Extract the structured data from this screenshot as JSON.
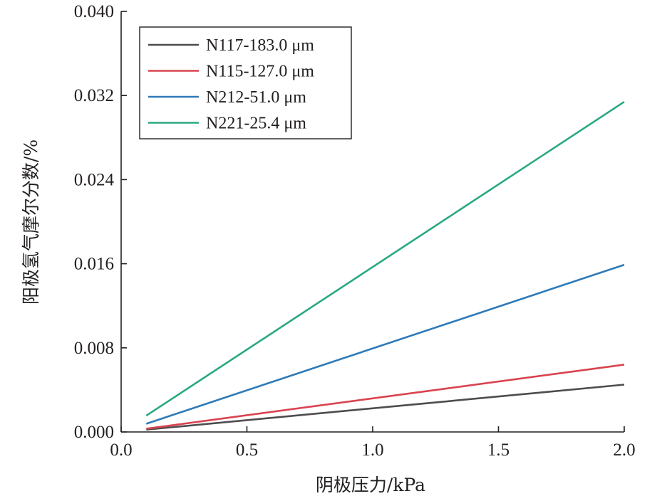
{
  "chart_data": {
    "type": "line",
    "xlabel": "阴极压力/kPa",
    "ylabel": "阳极氢气摩尔分数/%",
    "xlim": [
      0.0,
      2.0
    ],
    "ylim": [
      0.0,
      0.04
    ],
    "xticks": [
      "0.0",
      "0.5",
      "1.0",
      "1.5",
      "2.0"
    ],
    "yticks": [
      "0.000",
      "0.008",
      "0.016",
      "0.024",
      "0.032",
      "0.040"
    ],
    "grid": false,
    "legend_position": "top-left",
    "series": [
      {
        "name": "N117-183.0 μm",
        "color": "#4d4d4f",
        "x": [
          0.1,
          2.0
        ],
        "y": [
          0.00022,
          0.0045
        ]
      },
      {
        "name": "N115-127.0 μm",
        "color": "#d9434f",
        "x": [
          0.1,
          2.0
        ],
        "y": [
          0.00031,
          0.0064
        ]
      },
      {
        "name": "N212-51.0 μm",
        "color": "#2e7ab8",
        "x": [
          0.1,
          2.0
        ],
        "y": [
          0.00078,
          0.0159
        ]
      },
      {
        "name": "N221-25.4 μm",
        "color": "#2aa884",
        "x": [
          0.1,
          2.0
        ],
        "y": [
          0.00155,
          0.0314
        ]
      }
    ]
  }
}
